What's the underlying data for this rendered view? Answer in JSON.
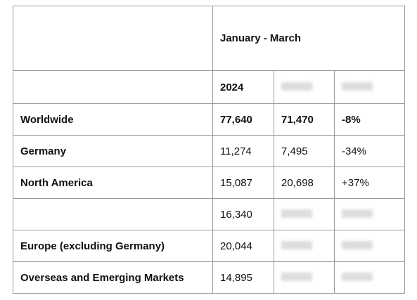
{
  "header": {
    "period": "January - March",
    "year": "2024"
  },
  "rows": [
    {
      "label": "Worldwide",
      "values": [
        "77,640",
        "71,470",
        "-8%"
      ],
      "bold": true
    },
    {
      "label": "Germany",
      "values": [
        "11,274",
        "7,495",
        "-34%"
      ]
    },
    {
      "label": "North America",
      "values": [
        "15,087",
        "20,698",
        "+37%"
      ]
    },
    {
      "values": [
        "16,340"
      ]
    },
    {
      "label": "Europe (excluding Germany)",
      "values": [
        "20,044"
      ]
    },
    {
      "label": "Overseas and Emerging Markets",
      "values": [
        "14,895"
      ]
    }
  ]
}
